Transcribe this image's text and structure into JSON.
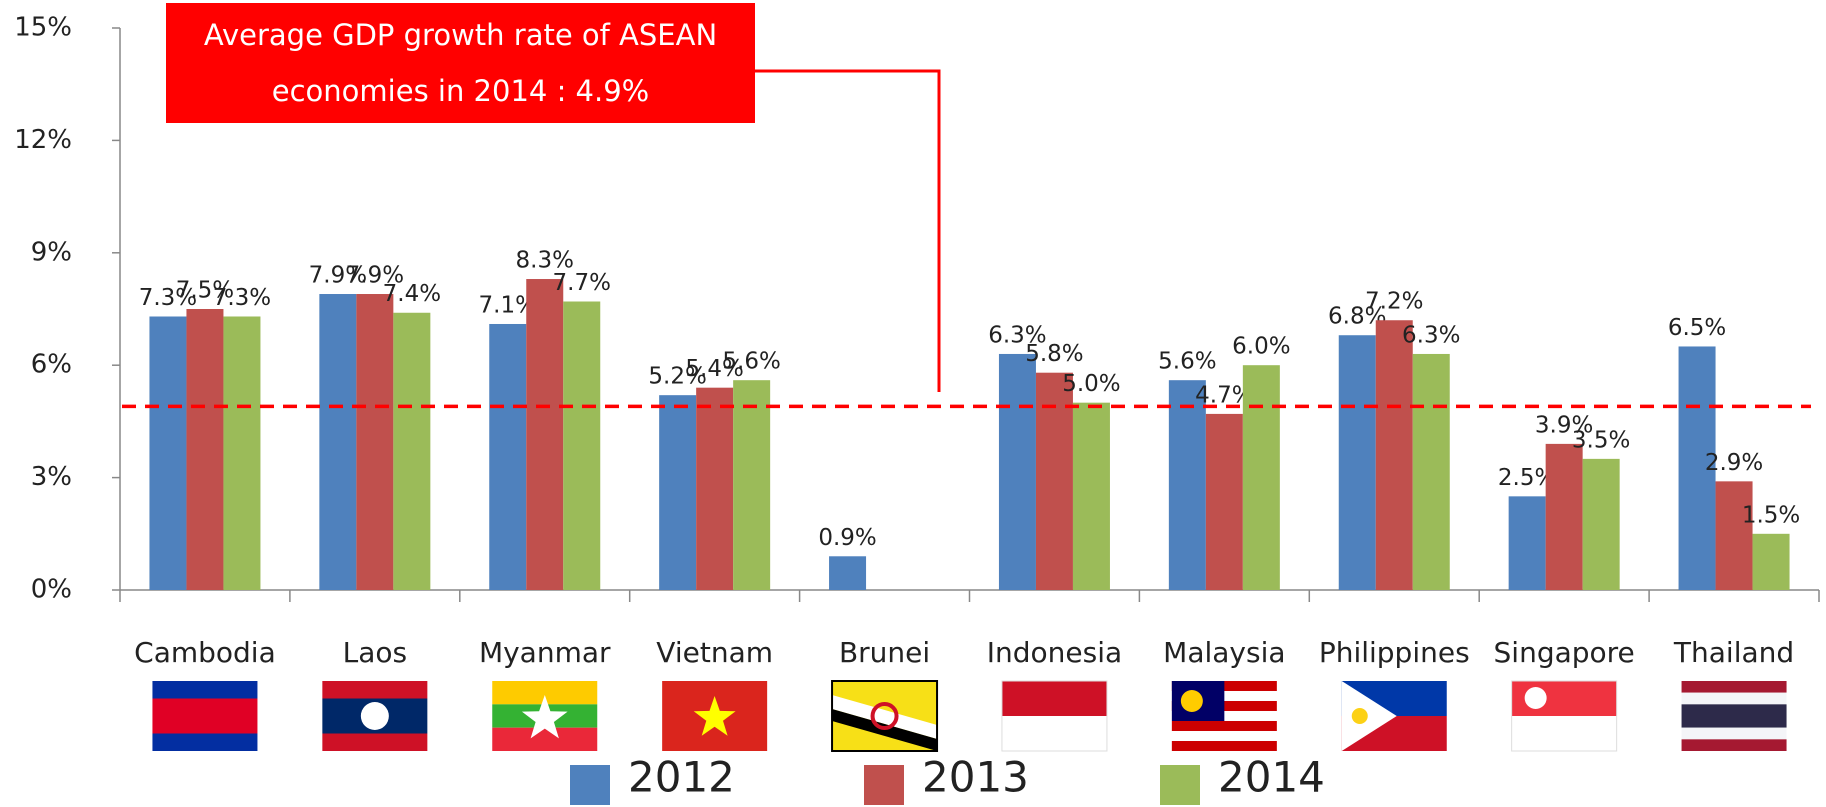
{
  "chart_data": {
    "type": "bar",
    "categories": [
      "Cambodia",
      "Laos",
      "Myanmar",
      "Vietnam",
      "Brunei",
      "Indonesia",
      "Malaysia",
      "Philippines",
      "Singapore",
      "Thailand"
    ],
    "series": [
      {
        "name": "2012",
        "color": "#4f81bd",
        "values": [
          7.3,
          7.9,
          7.1,
          5.2,
          0.9,
          6.3,
          5.6,
          6.8,
          2.5,
          6.5
        ],
        "value_labels": [
          "7.3%",
          "7.9%",
          "7.1%",
          "5.2%",
          "0.9%",
          "6.3%",
          "5.6%",
          "6.8%",
          "2.5%",
          "6.5%"
        ]
      },
      {
        "name": "2013",
        "color": "#c0504d",
        "values": [
          7.5,
          7.9,
          8.3,
          5.4,
          null,
          5.8,
          4.7,
          7.2,
          3.9,
          2.9
        ],
        "value_labels": [
          "7.5%",
          "7.9%",
          "8.3%",
          "5.4%",
          null,
          "5.8%",
          "4.7%",
          "7.2%",
          "3.9%",
          "2.9%"
        ]
      },
      {
        "name": "2014",
        "color": "#9bbb59",
        "values": [
          7.3,
          7.4,
          7.7,
          5.6,
          null,
          5.0,
          6.0,
          6.3,
          3.5,
          1.5
        ],
        "value_labels": [
          "7.3%",
          "7.4%",
          "7.7%",
          "5.6%",
          null,
          "5.0%",
          "6.0%",
          "6.3%",
          "3.5%",
          "1.5%"
        ]
      }
    ],
    "ylim": [
      0,
      15
    ],
    "yticks": [
      {
        "value": 0,
        "label": "0%"
      },
      {
        "value": 3,
        "label": "3%"
      },
      {
        "value": 6,
        "label": "6%"
      },
      {
        "value": 9,
        "label": "9%"
      },
      {
        "value": 12,
        "label": "12%"
      },
      {
        "value": 15,
        "label": "15%"
      }
    ],
    "reference_line": {
      "value": 4.9,
      "color": "#ff0000",
      "label": "Average GDP growth rate of ASEAN economies in 2014 : 4.9%"
    },
    "legend": "bottom"
  }
}
